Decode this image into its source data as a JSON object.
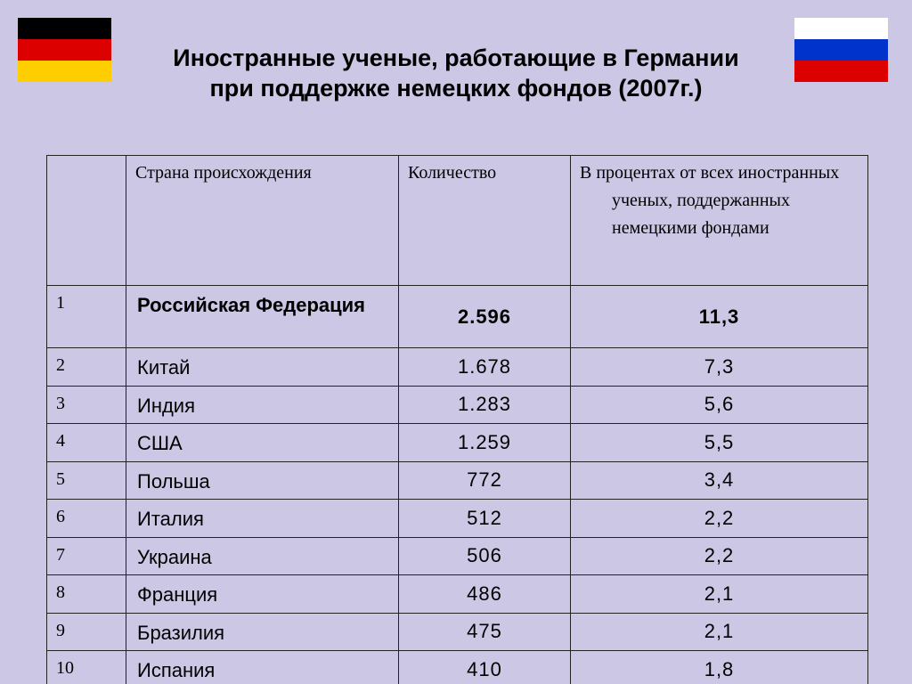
{
  "header": {
    "title_lines": [
      "Иностранные ученые, работающие в Германии",
      "при поддержке немецких фондов (2007г.)"
    ]
  },
  "table": {
    "columns": [
      "",
      "Страна происхождения",
      "Количество",
      "В процентах от всех иностранных ученых, поддержанных немецкими фондами"
    ],
    "rows": [
      [
        "1",
        "Российская Федерация",
        "2.596",
        "11,3"
      ],
      [
        "2",
        "Китай",
        "1.678",
        "7,3"
      ],
      [
        "3",
        "Индия",
        "1.283",
        "5,6"
      ],
      [
        "4",
        "США",
        "1.259",
        "5,5"
      ],
      [
        "5",
        "Польша",
        "772",
        "3,4"
      ],
      [
        "6",
        "Италия",
        "512",
        "2,2"
      ],
      [
        "7",
        "Украина",
        "506",
        "2,2"
      ],
      [
        "8",
        "Франция",
        "486",
        "2,1"
      ],
      [
        "9",
        "Бразилия",
        "475",
        "2,1"
      ],
      [
        "10",
        "Испания",
        "410",
        "1,8"
      ]
    ]
  }
}
